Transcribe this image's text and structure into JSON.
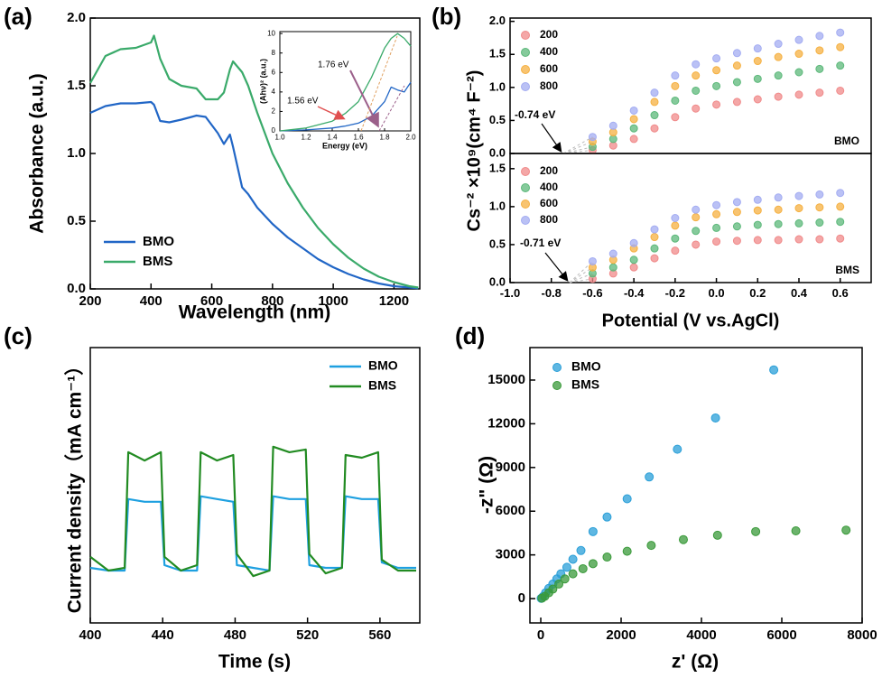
{
  "chart_data": [
    {
      "type": "line",
      "panel_label": "(a)",
      "x_label": "Wavelength (nm)",
      "y_label": "Absorbance (a.u.)",
      "xlim": [
        200,
        1285
      ],
      "xticks": [
        200,
        400,
        600,
        800,
        1000,
        1200
      ],
      "ylim": [
        0,
        2.0
      ],
      "yticks": [
        {
          "value": 0,
          "label": "0.0"
        },
        0.5,
        {
          "value": 1,
          "label": "1.0"
        },
        1.5,
        {
          "value": 2,
          "label": "2.0"
        }
      ],
      "legend": "lower left",
      "x": [
        200,
        250,
        300,
        350,
        400,
        410,
        430,
        460,
        500,
        550,
        580,
        620,
        640,
        660,
        670,
        700,
        720,
        750,
        800,
        850,
        900,
        950,
        1000,
        1050,
        1100,
        1150,
        1200,
        1250,
        1280
      ],
      "series": [
        {
          "name": "BMO",
          "color": "#2166c6",
          "values": [
            1.3,
            1.35,
            1.37,
            1.37,
            1.38,
            1.36,
            1.24,
            1.23,
            1.25,
            1.28,
            1.27,
            1.15,
            1.07,
            1.14,
            1.05,
            0.75,
            0.7,
            0.6,
            0.48,
            0.38,
            0.3,
            0.22,
            0.16,
            0.11,
            0.07,
            0.04,
            0.02,
            0.01,
            0.005
          ]
        },
        {
          "name": "BMS",
          "color": "#3aaa6a",
          "values": [
            1.52,
            1.72,
            1.77,
            1.78,
            1.82,
            1.87,
            1.7,
            1.55,
            1.5,
            1.48,
            1.4,
            1.4,
            1.45,
            1.62,
            1.68,
            1.6,
            1.5,
            1.3,
            1.0,
            0.78,
            0.6,
            0.45,
            0.33,
            0.23,
            0.15,
            0.09,
            0.05,
            0.02,
            0.01
          ]
        }
      ]
    },
    {
      "type": "line",
      "x_label": "Energy (eV)",
      "y_label": "(Ahν)² (a.u.)",
      "xlim": [
        1.0,
        2.0
      ],
      "xticks": [
        {
          "value": 1,
          "label": "1.0"
        },
        1.2,
        1.4,
        1.6,
        1.8,
        {
          "value": 2,
          "label": "2.0"
        }
      ],
      "ylim": [
        0,
        10.2
      ],
      "yticks": [
        0,
        2,
        4,
        6,
        8,
        10
      ],
      "annotations": [
        "1.76 eV",
        "1.56 eV"
      ],
      "x": [
        1.0,
        1.2,
        1.4,
        1.5,
        1.6,
        1.7,
        1.8,
        1.85,
        1.9,
        1.95,
        2.0
      ],
      "series": [
        {
          "name": "BMO",
          "color": "#2166c6",
          "values": [
            0,
            0.1,
            0.3,
            0.5,
            0.8,
            1.5,
            3.0,
            4.5,
            4.2,
            4.0,
            5.0
          ]
        },
        {
          "name": "BMS",
          "color": "#3aaa6a",
          "values": [
            0,
            0.3,
            1.0,
            1.8,
            3.0,
            5.5,
            8.5,
            9.5,
            10.0,
            9.5,
            8.7
          ]
        }
      ]
    },
    {
      "type": "scatter",
      "panel_label": "(b)",
      "y_label": "Cs⁻² ×10⁹(cm⁴ F⁻²)",
      "xlim": [
        -1.0,
        0.75
      ],
      "ylim": [
        0,
        2.05
      ],
      "yticks": [
        {
          "value": 0,
          "label": "0.0"
        },
        0.5,
        {
          "value": 1,
          "label": "1.0"
        },
        1.5,
        {
          "value": 2,
          "label": "2.0"
        }
      ],
      "legend": "upper left",
      "annotations": [
        "-0.74 eV",
        "BMO"
      ],
      "x": [
        -0.6,
        -0.5,
        -0.4,
        -0.3,
        -0.2,
        -0.1,
        0,
        0.1,
        0.2,
        0.3,
        0.4,
        0.5,
        0.6
      ],
      "series": [
        {
          "name": "200",
          "color": "#f08a8a",
          "values": [
            0.05,
            0.12,
            0.22,
            0.38,
            0.55,
            0.68,
            0.74,
            0.78,
            0.82,
            0.86,
            0.89,
            0.92,
            0.95
          ]
        },
        {
          "name": "400",
          "color": "#5cb87a",
          "values": [
            0.1,
            0.22,
            0.38,
            0.58,
            0.8,
            0.95,
            1.02,
            1.08,
            1.13,
            1.18,
            1.23,
            1.28,
            1.33
          ]
        },
        {
          "name": "600",
          "color": "#f5b041",
          "values": [
            0.18,
            0.32,
            0.52,
            0.78,
            1.02,
            1.18,
            1.26,
            1.33,
            1.4,
            1.46,
            1.51,
            1.56,
            1.61
          ]
        },
        {
          "name": "800",
          "color": "#a3acf2",
          "values": [
            0.25,
            0.42,
            0.65,
            0.92,
            1.18,
            1.35,
            1.44,
            1.52,
            1.59,
            1.66,
            1.72,
            1.78,
            1.83
          ]
        }
      ]
    },
    {
      "type": "scatter",
      "x_label": "Potential (V vs.AgCl)",
      "xlim": [
        -1.0,
        0.75
      ],
      "xticks": [
        {
          "value": -1,
          "label": "-1.0"
        },
        -0.8,
        -0.6,
        -0.4,
        -0.2,
        {
          "value": 0,
          "label": "0.0"
        },
        0.2,
        0.4,
        0.6
      ],
      "ylim": [
        0,
        1.7
      ],
      "yticks": [
        {
          "value": 0,
          "label": "0.0"
        },
        0.5,
        {
          "value": 1,
          "label": "1.0"
        },
        1.5
      ],
      "legend": "upper left",
      "annotations": [
        "-0.71 eV",
        "BMS"
      ],
      "x": [
        -0.6,
        -0.5,
        -0.4,
        -0.3,
        -0.2,
        -0.1,
        0,
        0.1,
        0.2,
        0.3,
        0.4,
        0.5,
        0.6
      ],
      "series": [
        {
          "name": "200",
          "color": "#f08a8a",
          "values": [
            0.05,
            0.12,
            0.2,
            0.32,
            0.42,
            0.5,
            0.54,
            0.55,
            0.56,
            0.56,
            0.57,
            0.57,
            0.58
          ]
        },
        {
          "name": "400",
          "color": "#5cb87a",
          "values": [
            0.12,
            0.2,
            0.3,
            0.45,
            0.58,
            0.68,
            0.72,
            0.74,
            0.76,
            0.77,
            0.78,
            0.79,
            0.8
          ]
        },
        {
          "name": "600",
          "color": "#f5b041",
          "values": [
            0.2,
            0.3,
            0.45,
            0.6,
            0.75,
            0.86,
            0.9,
            0.93,
            0.95,
            0.96,
            0.98,
            0.99,
            1.0
          ]
        },
        {
          "name": "800",
          "color": "#a3acf2",
          "values": [
            0.28,
            0.38,
            0.52,
            0.7,
            0.85,
            0.96,
            1.02,
            1.06,
            1.09,
            1.12,
            1.14,
            1.16,
            1.18
          ]
        }
      ]
    },
    {
      "type": "line",
      "panel_label": "(c)",
      "x_label": "Time (s)",
      "y_label": "Current density（mA cm⁻¹）",
      "xlim": [
        400,
        582
      ],
      "xticks": [
        400,
        440,
        480,
        520,
        560
      ],
      "ylim": [
        0,
        1
      ],
      "legend": "upper right",
      "x": [
        400,
        410,
        419,
        421,
        430,
        439,
        441,
        450,
        459,
        461,
        470,
        479,
        481,
        490,
        499,
        501,
        510,
        519,
        521,
        530,
        539,
        541,
        550,
        559,
        561,
        570,
        580
      ],
      "series": [
        {
          "name": "BMO",
          "color": "#1ea0e0",
          "values": [
            0.2,
            0.19,
            0.19,
            0.45,
            0.44,
            0.44,
            0.21,
            0.19,
            0.19,
            0.46,
            0.45,
            0.44,
            0.21,
            0.2,
            0.19,
            0.46,
            0.45,
            0.45,
            0.21,
            0.2,
            0.2,
            0.46,
            0.45,
            0.45,
            0.22,
            0.2,
            0.2
          ]
        },
        {
          "name": "BMS",
          "color": "#228b22",
          "values": [
            0.24,
            0.19,
            0.2,
            0.62,
            0.59,
            0.62,
            0.24,
            0.19,
            0.21,
            0.62,
            0.59,
            0.61,
            0.25,
            0.17,
            0.19,
            0.64,
            0.62,
            0.63,
            0.25,
            0.18,
            0.2,
            0.61,
            0.6,
            0.62,
            0.23,
            0.19,
            0.19
          ]
        }
      ]
    },
    {
      "type": "scatter",
      "panel_label": "(d)",
      "x_label": "z' (Ω)",
      "y_label": "-z\" (Ω)",
      "xlim": [
        -270,
        8000
      ],
      "xticks": [
        0,
        2000,
        4000,
        6000,
        8000
      ],
      "ylim": [
        -1670,
        17230
      ],
      "yticks": [
        0,
        3000,
        6000,
        9000,
        12000,
        15000
      ],
      "legend": "upper left",
      "series": [
        {
          "name": "BMO",
          "color": "#2a9fd8",
          "x": [
            10,
            60,
            120,
            200,
            300,
            400,
            500,
            650,
            800,
            1000,
            1300,
            1650,
            2150,
            2700,
            3400,
            4350,
            5800
          ],
          "values": [
            20,
            150,
            400,
            700,
            1000,
            1350,
            1700,
            2150,
            2700,
            3300,
            4600,
            5600,
            6850,
            8350,
            10250,
            12400,
            15700
          ]
        },
        {
          "name": "BMS",
          "color": "#3a9a3a",
          "x": [
            30,
            100,
            200,
            300,
            450,
            600,
            800,
            1050,
            1300,
            1650,
            2150,
            2750,
            3550,
            4400,
            5350,
            6350,
            7600
          ],
          "values": [
            30,
            150,
            400,
            650,
            1000,
            1350,
            1700,
            2050,
            2400,
            2850,
            3250,
            3650,
            4050,
            4350,
            4600,
            4650,
            4700
          ]
        }
      ]
    }
  ]
}
